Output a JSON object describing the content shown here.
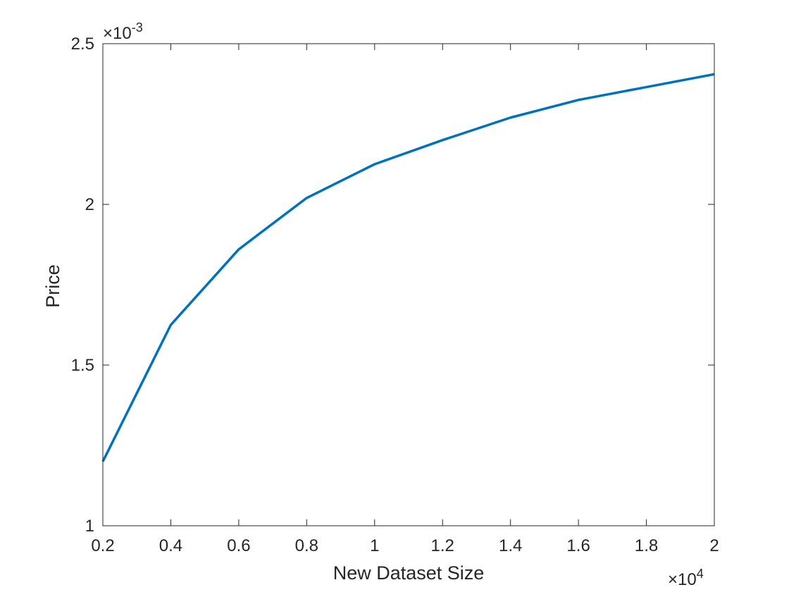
{
  "chart_data": {
    "type": "line",
    "title": "",
    "xlabel": "New Dataset Size",
    "ylabel": "Price",
    "xlim": [
      2000,
      20000
    ],
    "ylim": [
      0.001,
      0.0025
    ],
    "x_exponent_label": "×10",
    "x_exponent_power": "4",
    "y_exponent_label": "×10",
    "y_exponent_power": "-3",
    "x_ticks": [
      2000,
      4000,
      6000,
      8000,
      10000,
      12000,
      14000,
      16000,
      18000,
      20000
    ],
    "x_tick_labels": [
      "0.2",
      "0.4",
      "0.6",
      "0.8",
      "1",
      "1.2",
      "1.4",
      "1.6",
      "1.8",
      "2"
    ],
    "y_ticks": [
      0.001,
      0.0015,
      0.002,
      0.0025
    ],
    "y_tick_labels": [
      "1",
      "1.5",
      "2",
      "2.5"
    ],
    "grid": false,
    "series": [
      {
        "color": "#0072BD",
        "x": [
          2000,
          4000,
          6000,
          8000,
          10000,
          12000,
          14000,
          16000,
          18000,
          20000
        ],
        "y": [
          0.0012,
          0.001625,
          0.00186,
          0.00202,
          0.002125,
          0.0022,
          0.00227,
          0.002325,
          0.002365,
          0.002405
        ]
      }
    ]
  }
}
